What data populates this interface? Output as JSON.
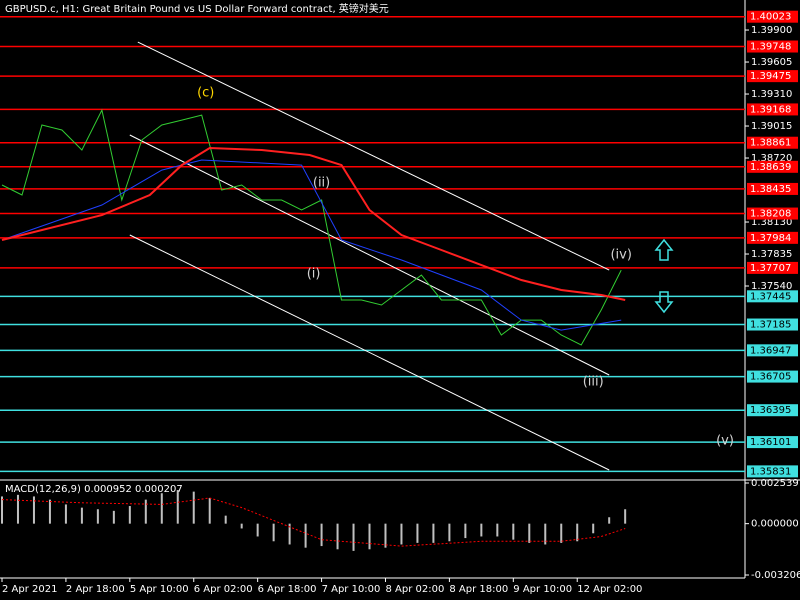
{
  "chart_data": [
    {
      "type": "line",
      "title": "GBPUSD.c, H1:  Great Britain Pound vs US Dollar Forward contract, 英镑对美元",
      "xlim": [
        0,
        186
      ],
      "ylim": [
        1.3577,
        1.4014
      ],
      "xticks": [
        {
          "value": 0,
          "label": "2 Apr 2021"
        },
        {
          "value": 16,
          "label": "2 Apr 18:00"
        },
        {
          "value": 32,
          "label": "5 Apr 10:00"
        },
        {
          "value": 48,
          "label": "6 Apr 02:00"
        },
        {
          "value": 64,
          "label": "6 Apr 18:00"
        },
        {
          "value": 80,
          "label": "7 Apr 10:00"
        },
        {
          "value": 96,
          "label": "8 Apr 02:00"
        },
        {
          "value": 112,
          "label": "8 Apr 18:00"
        },
        {
          "value": 128,
          "label": "9 Apr 10:00"
        },
        {
          "value": 144,
          "label": "12 Apr 02:00"
        }
      ],
      "yticks": [
        {
          "value": 1.399,
          "label": "1.39900"
        },
        1.39605,
        {
          "value": 1.3931,
          "label": "1.39310"
        },
        1.39015,
        {
          "value": 1.3872,
          "label": "1.38720"
        },
        {
          "value": 1.3813,
          "label": "1.38130"
        },
        1.37835,
        {
          "value": 1.3754,
          "label": "1.37540"
        }
      ],
      "levels": [
        {
          "value": 1.40023,
          "color": "#ff0000"
        },
        {
          "value": 1.39748,
          "color": "#ff0000"
        },
        {
          "value": 1.39475,
          "color": "#ff0000"
        },
        {
          "value": 1.39168,
          "color": "#ff0000"
        },
        {
          "value": 1.38861,
          "color": "#ff0000"
        },
        {
          "value": 1.38639,
          "color": "#ff0000"
        },
        {
          "value": 1.38435,
          "color": "#ff0000"
        },
        {
          "value": 1.38208,
          "color": "#ff0000"
        },
        {
          "value": 1.37984,
          "color": "#ff0000"
        },
        {
          "value": 1.37707,
          "color": "#ff0000"
        },
        {
          "value": 1.37445,
          "color": "#40e0e0"
        },
        {
          "value": 1.37185,
          "color": "#40e0e0"
        },
        {
          "value": 1.36947,
          "color": "#40e0e0"
        },
        {
          "value": 1.36705,
          "color": "#40e0e0"
        },
        {
          "value": 1.36395,
          "color": "#40e0e0"
        },
        {
          "value": 1.36101,
          "color": "#40e0e0"
        },
        {
          "value": 1.35831,
          "color": "#40e0e0"
        }
      ],
      "series": [
        {
          "color": "#ffffff",
          "x": [
            34,
            152
          ],
          "values": [
            1.39789,
            1.37687
          ]
        },
        {
          "color": "#ffffff",
          "x": [
            32,
            152
          ],
          "values": [
            1.38932,
            1.3672
          ]
        },
        {
          "color": "#ffffff",
          "x": [
            32,
            152
          ],
          "values": [
            1.3801,
            1.35844
          ]
        },
        {
          "color": "#32cd32",
          "x": [
            0,
            5,
            10,
            15,
            20,
            25,
            30,
            35,
            40,
            45,
            50,
            55,
            60,
            65,
            70,
            75,
            80,
            85,
            90,
            95,
            100,
            105,
            110,
            115,
            120,
            125,
            130,
            135,
            140,
            145,
            150,
            155
          ],
          "values": [
            1.38471,
            1.38379,
            1.39024,
            1.38978,
            1.38794,
            1.39162,
            1.38333,
            1.38886,
            1.39024,
            1.3907,
            1.39116,
            1.38425,
            1.38471,
            1.38333,
            1.38333,
            1.38241,
            1.38333,
            1.37411,
            1.37411,
            1.37365,
            1.37503,
            1.37641,
            1.37411,
            1.37411,
            1.37411,
            1.37088,
            1.37226,
            1.37226,
            1.37088,
            1.36996,
            1.37319,
            1.37687
          ]
        },
        {
          "color": "#2040ff",
          "x": [
            0,
            25,
            40,
            50,
            75,
            85,
            100,
            120,
            130,
            140,
            155
          ],
          "values": [
            1.37964,
            1.38287,
            1.38609,
            1.38702,
            1.38655,
            1.37964,
            1.3778,
            1.37503,
            1.37226,
            1.37134,
            1.37226
          ]
        },
        {
          "color": "#ff2020",
          "x": [
            0,
            25,
            37,
            45,
            52,
            65,
            77,
            85,
            92,
            100,
            110,
            120,
            130,
            140,
            150,
            156
          ],
          "values": [
            1.37964,
            1.38194,
            1.38379,
            1.38655,
            1.38812,
            1.38794,
            1.38748,
            1.38655,
            1.38241,
            1.3801,
            1.37872,
            1.37733,
            1.37595,
            1.37503,
            1.37457,
            1.37411
          ]
        }
      ],
      "annotations": [
        {
          "text": "(c)",
          "x": 51,
          "y": 1.39319,
          "color": "#ffd700"
        },
        {
          "text": "(ii)",
          "x": 80,
          "y": 1.3849,
          "color": "#d3d3d3"
        },
        {
          "text": "(i)",
          "x": 78,
          "y": 1.37651,
          "color": "#d3d3d3"
        },
        {
          "text": "(iii)",
          "x": 148,
          "y": 1.36655,
          "color": "#d3d3d3"
        },
        {
          "text": "(iv)",
          "x": 155,
          "y": 1.37826,
          "color": "#d3d3d3"
        },
        {
          "text": "(v)",
          "x": 181,
          "y": 1.36111,
          "color": "#d3d3d3"
        }
      ]
    },
    {
      "type": "bar",
      "title": "MACD(12,26,9) 0.000952 0.000207",
      "xlim": [
        0,
        186
      ],
      "ylim": [
        -0.003206,
        0.002539
      ],
      "yticks": [
        0.002539,
        {
          "value": 0,
          "label": "0.000000"
        },
        -0.003206
      ],
      "color": "#c0c0c0",
      "x": [
        0,
        4,
        8,
        12,
        16,
        20,
        24,
        28,
        32,
        36,
        40,
        44,
        48,
        52,
        56,
        60,
        64,
        68,
        72,
        76,
        80,
        84,
        88,
        92,
        96,
        100,
        104,
        108,
        112,
        116,
        120,
        124,
        128,
        132,
        136,
        140,
        144,
        148,
        152,
        156
      ],
      "values": [
        0.0017,
        0.0018,
        0.0017,
        0.0015,
        0.0012,
        0.001,
        0.0009,
        0.0008,
        0.0011,
        0.0015,
        0.0019,
        0.0021,
        0.002,
        0.0016,
        0.0005,
        -0.0003,
        -0.0008,
        -0.0011,
        -0.0013,
        -0.0015,
        -0.0014,
        -0.0016,
        -0.0017,
        -0.0016,
        -0.0015,
        -0.0013,
        -0.0012,
        -0.0012,
        -0.0011,
        -0.0009,
        -0.0008,
        -0.0008,
        -0.001,
        -0.0012,
        -0.0013,
        -0.0012,
        -0.0011,
        -0.0006,
        0.0004,
        0.0009
      ],
      "signal": {
        "color": "#ff0000",
        "x": [
          0,
          20,
          40,
          52,
          60,
          80,
          100,
          120,
          140,
          150,
          156
        ],
        "values": [
          0.0015,
          0.0013,
          0.0012,
          0.0016,
          0.001,
          -0.001,
          -0.0014,
          -0.0011,
          -0.0011,
          -0.0008,
          -0.0003
        ]
      }
    }
  ]
}
